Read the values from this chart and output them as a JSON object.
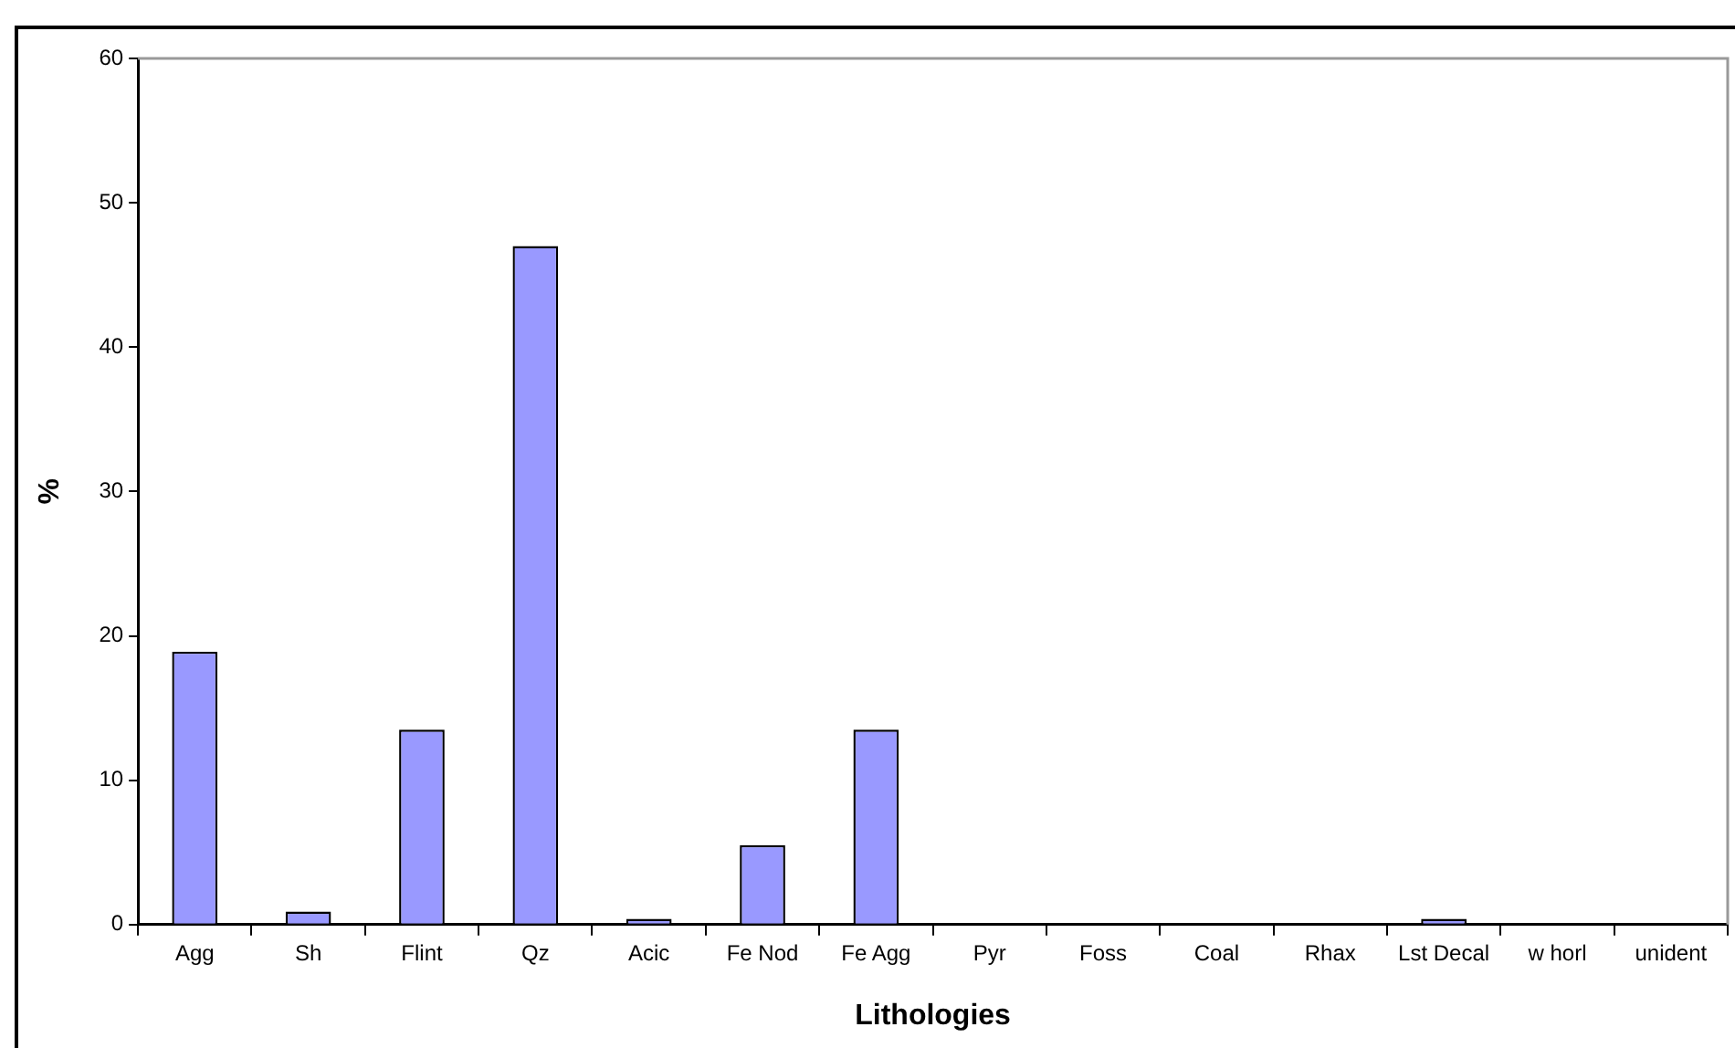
{
  "chart_data": {
    "type": "bar",
    "xlabel": "Lithologies",
    "ylabel": "%",
    "categories": [
      "Agg",
      "Sh",
      "Flint",
      "Qz",
      "Acic",
      "Fe Nod",
      "Fe Agg",
      "Pyr",
      "Foss",
      "Coal",
      "Rhax",
      "Lst Decal",
      "w horl",
      "unident"
    ],
    "values": [
      18.9,
      0.9,
      13.5,
      47,
      0.4,
      5.5,
      13.5,
      0,
      0,
      0,
      0,
      0.4,
      0,
      0
    ],
    "color": "#9999ff",
    "ylim": [
      0,
      60
    ],
    "yticks": [
      0,
      10,
      20,
      30,
      40,
      50,
      60
    ],
    "grid": false,
    "legend": false
  }
}
